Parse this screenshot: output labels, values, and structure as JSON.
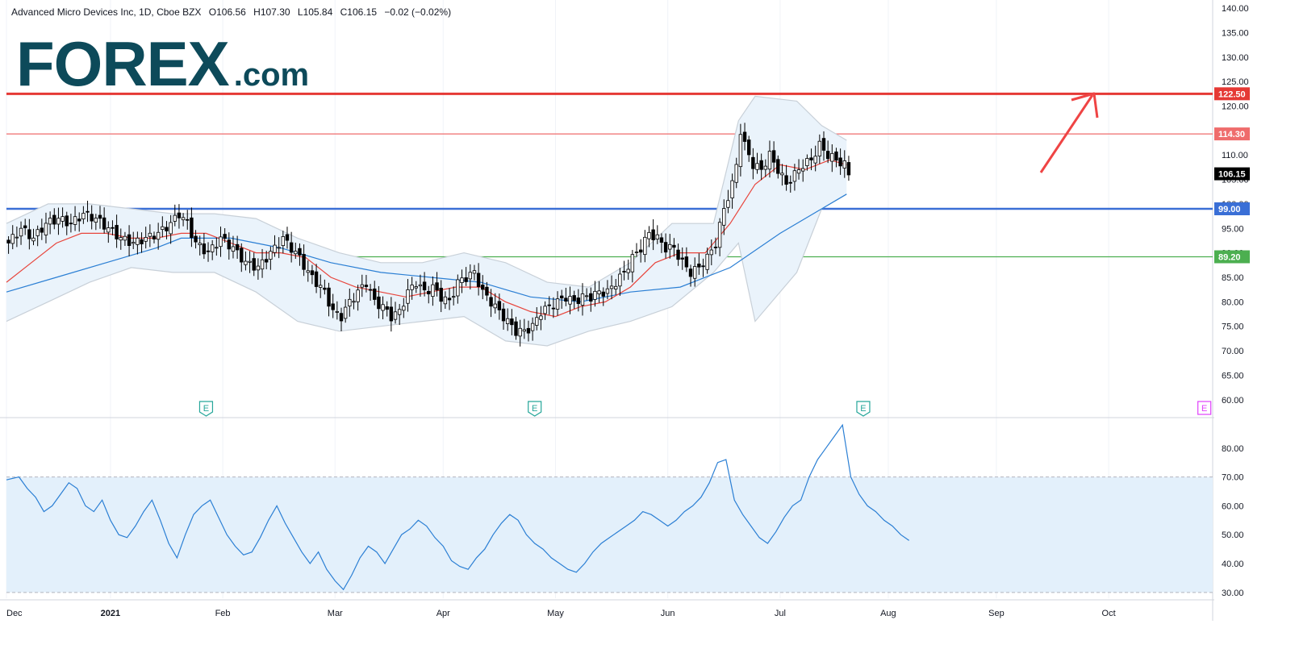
{
  "header": {
    "symbol": "Advanced Micro Devices Inc, 1D, Cboe BZX",
    "open": "O106.56",
    "high": "H107.30",
    "low": "L105.84",
    "close": "C106.15",
    "change": "−0.02 (−0.02%)"
  },
  "logo": {
    "brand": "FOREX",
    "suffix": ".com"
  },
  "colors": {
    "up_candle": "#ffffff",
    "down_candle": "#000000",
    "sma20": "#e8453c",
    "sma50": "#2b7fd4",
    "bollinger": "#c8d0d8",
    "resistance_strong": "#e53935",
    "resistance": "#ef6c6c",
    "support": "#3a6fd6",
    "support_green": "#4caf50",
    "rsi_line": "#2b7fd4",
    "rsi_band": "#e3f0fb",
    "earnings_past": "#26a69a",
    "earnings_future": "#e040fb",
    "arrow": "#ef4444"
  },
  "chart_data": [
    {
      "type": "candlestick",
      "title": "Advanced Micro Devices Inc, 1D, Cboe BZX",
      "price_axis": {
        "range": [
          57,
          141
        ],
        "ticks": [
          "60.00",
          "65.00",
          "70.00",
          "75.00",
          "80.00",
          "85.00",
          "90.00",
          "95.00",
          "100.00",
          "105.00",
          "110.00",
          "115.00",
          "120.00",
          "125.00",
          "130.00",
          "135.00",
          "140.00"
        ]
      },
      "time_axis": {
        "labels": [
          "Dec",
          "2021",
          "Feb",
          "Mar",
          "Apr",
          "May",
          "Jun",
          "Jul",
          "Aug",
          "Sep",
          "Oct"
        ]
      },
      "horizontal_levels": [
        {
          "value": 122.5,
          "label": "122.50",
          "color": "#e53935"
        },
        {
          "value": 114.3,
          "label": "114.30",
          "color": "#ef6c6c"
        },
        {
          "value": 99.0,
          "label": "99.00",
          "color": "#3a6fd6"
        },
        {
          "value": 89.2,
          "label": "89.20",
          "color": "#4caf50"
        }
      ],
      "last_price": {
        "value": 106.15,
        "label": "106.15"
      },
      "earnings_markers": [
        {
          "label": "E",
          "status": "reported"
        },
        {
          "label": "E",
          "status": "reported"
        },
        {
          "label": "E",
          "status": "reported"
        },
        {
          "label": "E",
          "status": "upcoming"
        }
      ],
      "close_path": [
        [
          0,
          92
        ],
        [
          3,
          95
        ],
        [
          6,
          93
        ],
        [
          9,
          96
        ],
        [
          12,
          97
        ],
        [
          15,
          96
        ],
        [
          18,
          98
        ],
        [
          21,
          97
        ],
        [
          24,
          95
        ],
        [
          27,
          93
        ],
        [
          30,
          92
        ],
        [
          33,
          93
        ],
        [
          36,
          94
        ],
        [
          39,
          96
        ],
        [
          41,
          98
        ],
        [
          43,
          96
        ],
        [
          45,
          92
        ],
        [
          48,
          90
        ],
        [
          51,
          93
        ],
        [
          54,
          91
        ],
        [
          57,
          88
        ],
        [
          60,
          87
        ],
        [
          63,
          90
        ],
        [
          66,
          93
        ],
        [
          68,
          91
        ],
        [
          70,
          89
        ],
        [
          72,
          86
        ],
        [
          74,
          84
        ],
        [
          76,
          82
        ],
        [
          78,
          78
        ],
        [
          80,
          77
        ],
        [
          82,
          80
        ],
        [
          84,
          82
        ],
        [
          86,
          84
        ],
        [
          88,
          80
        ],
        [
          90,
          79
        ],
        [
          92,
          77
        ],
        [
          94,
          78
        ],
        [
          96,
          82
        ],
        [
          98,
          84
        ],
        [
          100,
          82
        ],
        [
          102,
          83
        ],
        [
          104,
          81
        ],
        [
          106,
          80
        ],
        [
          108,
          84
        ],
        [
          110,
          85
        ],
        [
          112,
          86
        ],
        [
          114,
          82
        ],
        [
          116,
          80
        ],
        [
          118,
          78
        ],
        [
          120,
          76
        ],
        [
          122,
          74
        ],
        [
          124,
          74
        ],
        [
          126,
          75
        ],
        [
          128,
          78
        ],
        [
          130,
          79
        ],
        [
          132,
          80
        ],
        [
          134,
          81
        ],
        [
          136,
          80
        ],
        [
          138,
          81
        ],
        [
          140,
          81
        ],
        [
          142,
          82
        ],
        [
          144,
          82
        ],
        [
          146,
          84
        ],
        [
          148,
          86
        ],
        [
          150,
          89
        ],
        [
          152,
          91
        ],
        [
          154,
          94
        ],
        [
          156,
          93
        ],
        [
          158,
          91
        ],
        [
          160,
          91
        ],
        [
          162,
          88
        ],
        [
          164,
          86
        ],
        [
          166,
          87
        ],
        [
          168,
          89
        ],
        [
          170,
          92
        ],
        [
          172,
          99
        ],
        [
          174,
          104
        ],
        [
          175,
          108
        ],
        [
          176,
          115
        ],
        [
          177,
          112
        ],
        [
          179,
          108
        ],
        [
          181,
          107
        ],
        [
          183,
          110
        ],
        [
          185,
          107
        ],
        [
          187,
          104
        ],
        [
          189,
          106
        ],
        [
          191,
          108
        ],
        [
          193,
          109
        ],
        [
          195,
          112
        ],
        [
          197,
          110
        ],
        [
          199,
          109
        ],
        [
          201,
          108
        ],
        [
          202,
          106
        ]
      ],
      "sma20_path": [
        [
          0,
          84
        ],
        [
          6,
          88
        ],
        [
          12,
          92
        ],
        [
          18,
          94
        ],
        [
          24,
          94
        ],
        [
          30,
          93
        ],
        [
          36,
          93
        ],
        [
          42,
          94
        ],
        [
          48,
          94
        ],
        [
          54,
          92
        ],
        [
          60,
          90
        ],
        [
          66,
          90
        ],
        [
          72,
          89
        ],
        [
          78,
          85
        ],
        [
          84,
          83
        ],
        [
          90,
          82
        ],
        [
          96,
          81
        ],
        [
          102,
          82
        ],
        [
          108,
          83
        ],
        [
          114,
          83
        ],
        [
          120,
          80
        ],
        [
          126,
          78
        ],
        [
          132,
          77
        ],
        [
          138,
          79
        ],
        [
          144,
          80
        ],
        [
          150,
          83
        ],
        [
          156,
          88
        ],
        [
          162,
          90
        ],
        [
          168,
          90
        ],
        [
          174,
          96
        ],
        [
          180,
          104
        ],
        [
          186,
          108
        ],
        [
          192,
          107
        ],
        [
          198,
          109
        ],
        [
          202,
          108
        ]
      ],
      "sma50_path": [
        [
          0,
          82
        ],
        [
          12,
          85
        ],
        [
          24,
          88
        ],
        [
          36,
          91
        ],
        [
          42,
          93
        ],
        [
          54,
          93
        ],
        [
          66,
          91
        ],
        [
          78,
          88
        ],
        [
          90,
          86
        ],
        [
          102,
          85
        ],
        [
          114,
          84
        ],
        [
          126,
          81
        ],
        [
          138,
          80
        ],
        [
          150,
          82
        ],
        [
          162,
          83
        ],
        [
          174,
          87
        ],
        [
          186,
          94
        ],
        [
          196,
          99
        ],
        [
          202,
          102
        ]
      ],
      "bollinger_upper_path": [
        [
          0,
          96
        ],
        [
          10,
          100
        ],
        [
          20,
          100
        ],
        [
          30,
          99
        ],
        [
          40,
          98
        ],
        [
          50,
          98
        ],
        [
          60,
          97
        ],
        [
          70,
          93
        ],
        [
          80,
          90
        ],
        [
          90,
          88
        ],
        [
          100,
          88
        ],
        [
          110,
          90
        ],
        [
          120,
          88
        ],
        [
          130,
          84
        ],
        [
          140,
          83
        ],
        [
          150,
          88
        ],
        [
          160,
          96
        ],
        [
          170,
          96
        ],
        [
          176,
          117
        ],
        [
          180,
          122
        ],
        [
          190,
          121
        ],
        [
          196,
          116
        ],
        [
          202,
          113
        ]
      ],
      "bollinger_lower_path": [
        [
          0,
          76
        ],
        [
          10,
          80
        ],
        [
          20,
          84
        ],
        [
          30,
          87
        ],
        [
          40,
          86
        ],
        [
          50,
          86
        ],
        [
          60,
          82
        ],
        [
          70,
          76
        ],
        [
          80,
          74
        ],
        [
          90,
          75
        ],
        [
          100,
          76
        ],
        [
          110,
          77
        ],
        [
          120,
          72
        ],
        [
          130,
          71
        ],
        [
          140,
          74
        ],
        [
          150,
          76
        ],
        [
          160,
          79
        ],
        [
          170,
          86
        ],
        [
          176,
          92
        ],
        [
          180,
          76
        ],
        [
          190,
          86
        ],
        [
          196,
          99
        ],
        [
          202,
          102
        ]
      ]
    },
    {
      "type": "line",
      "title": "",
      "y_axis": {
        "range": [
          28,
          90
        ],
        "ticks": [
          "30.00",
          "40.00",
          "50.00",
          "60.00",
          "70.00",
          "80.00"
        ]
      },
      "band": [
        30,
        70
      ],
      "values_path": [
        [
          0,
          69
        ],
        [
          3,
          70
        ],
        [
          5,
          66
        ],
        [
          7,
          63
        ],
        [
          9,
          58
        ],
        [
          11,
          60
        ],
        [
          13,
          64
        ],
        [
          15,
          68
        ],
        [
          17,
          66
        ],
        [
          19,
          60
        ],
        [
          21,
          58
        ],
        [
          23,
          62
        ],
        [
          25,
          55
        ],
        [
          27,
          50
        ],
        [
          29,
          49
        ],
        [
          31,
          53
        ],
        [
          33,
          58
        ],
        [
          35,
          62
        ],
        [
          37,
          55
        ],
        [
          39,
          47
        ],
        [
          41,
          42
        ],
        [
          43,
          50
        ],
        [
          45,
          57
        ],
        [
          47,
          60
        ],
        [
          49,
          62
        ],
        [
          51,
          56
        ],
        [
          53,
          50
        ],
        [
          55,
          46
        ],
        [
          57,
          43
        ],
        [
          59,
          44
        ],
        [
          61,
          49
        ],
        [
          63,
          55
        ],
        [
          65,
          60
        ],
        [
          67,
          54
        ],
        [
          69,
          49
        ],
        [
          71,
          44
        ],
        [
          73,
          40
        ],
        [
          75,
          44
        ],
        [
          77,
          38
        ],
        [
          79,
          34
        ],
        [
          81,
          31
        ],
        [
          83,
          36
        ],
        [
          85,
          42
        ],
        [
          87,
          46
        ],
        [
          89,
          44
        ],
        [
          91,
          40
        ],
        [
          93,
          45
        ],
        [
          95,
          50
        ],
        [
          97,
          52
        ],
        [
          99,
          55
        ],
        [
          101,
          53
        ],
        [
          103,
          49
        ],
        [
          105,
          46
        ],
        [
          107,
          41
        ],
        [
          109,
          39
        ],
        [
          111,
          38
        ],
        [
          113,
          42
        ],
        [
          115,
          45
        ],
        [
          117,
          50
        ],
        [
          119,
          54
        ],
        [
          121,
          57
        ],
        [
          123,
          55
        ],
        [
          125,
          50
        ],
        [
          127,
          47
        ],
        [
          129,
          45
        ],
        [
          131,
          42
        ],
        [
          133,
          40
        ],
        [
          135,
          38
        ],
        [
          137,
          37
        ],
        [
          139,
          40
        ],
        [
          141,
          44
        ],
        [
          143,
          47
        ],
        [
          145,
          49
        ],
        [
          147,
          51
        ],
        [
          149,
          53
        ],
        [
          151,
          55
        ],
        [
          153,
          58
        ],
        [
          155,
          57
        ],
        [
          157,
          55
        ],
        [
          159,
          53
        ],
        [
          161,
          55
        ],
        [
          163,
          58
        ],
        [
          165,
          60
        ],
        [
          167,
          63
        ],
        [
          169,
          68
        ],
        [
          171,
          75
        ],
        [
          173,
          76
        ],
        [
          175,
          62
        ],
        [
          177,
          57
        ],
        [
          179,
          53
        ],
        [
          181,
          49
        ],
        [
          183,
          47
        ],
        [
          185,
          51
        ],
        [
          187,
          56
        ],
        [
          189,
          60
        ],
        [
          191,
          62
        ],
        [
          193,
          70
        ],
        [
          195,
          76
        ],
        [
          197,
          80
        ],
        [
          199,
          84
        ],
        [
          201,
          88
        ],
        [
          203,
          70
        ],
        [
          205,
          64
        ],
        [
          207,
          60
        ],
        [
          209,
          58
        ],
        [
          211,
          55
        ],
        [
          213,
          53
        ],
        [
          215,
          50
        ],
        [
          217,
          48
        ]
      ]
    }
  ]
}
